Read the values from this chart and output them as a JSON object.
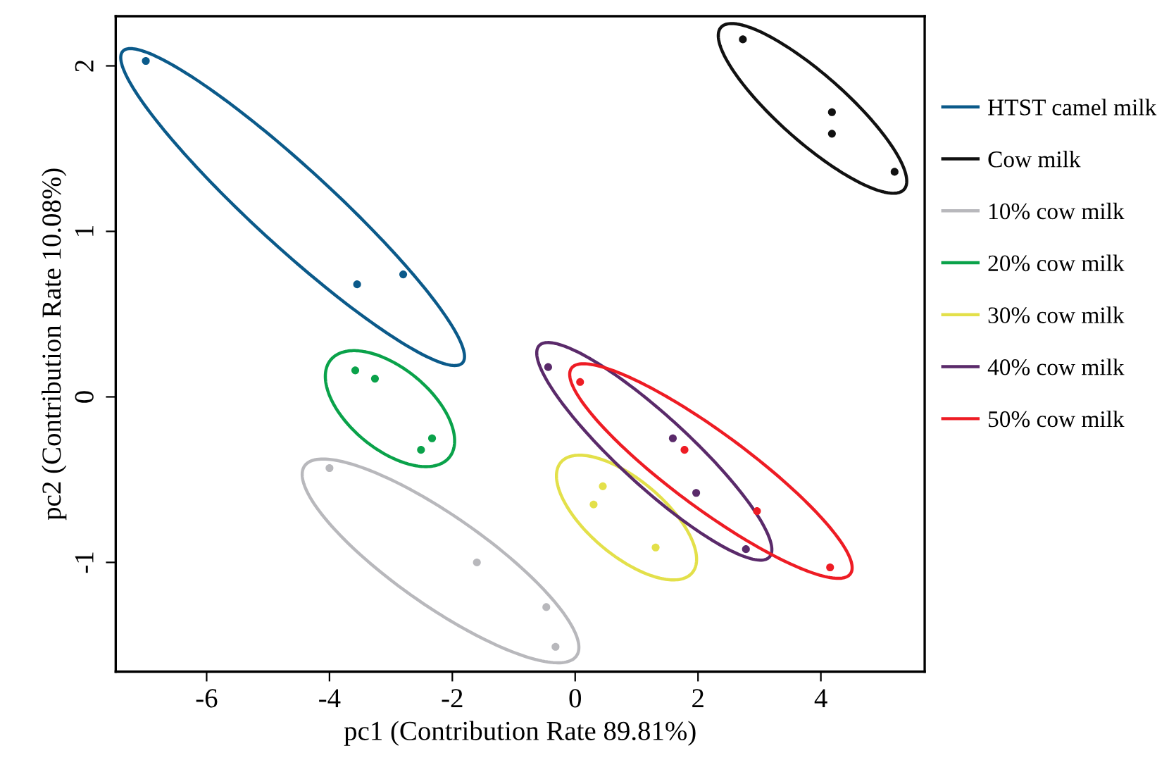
{
  "chart_data": {
    "type": "scatter",
    "xlabel": "pc1 (Contribution Rate 89.81%)",
    "ylabel": "pc2 (Contribution Rate 10.08%)",
    "xlim": [
      -7.48,
      5.69
    ],
    "ylim": [
      -1.66,
      2.3
    ],
    "xticks": [
      -6,
      -4,
      -2,
      0,
      2,
      4
    ],
    "yticks": [
      -1,
      0,
      1,
      2
    ],
    "grid": false,
    "legend": "right",
    "marker": "circle",
    "series": [
      {
        "name": "HTST camel milk",
        "color": "#0b5a8a",
        "x": [
          -6.99,
          -3.55,
          -2.8
        ],
        "values": [
          2.03,
          0.68,
          0.74
        ]
      },
      {
        "name": "Cow milk",
        "color": "#111111",
        "x": [
          2.73,
          4.18,
          4.18,
          5.2
        ],
        "values": [
          2.16,
          1.72,
          1.59,
          1.36
        ]
      },
      {
        "name": "10% cow milk",
        "color": "#b8b8bc",
        "x": [
          -4.0,
          -1.6,
          -0.47,
          -0.32
        ],
        "values": [
          -0.43,
          -1.0,
          -1.27,
          -1.51
        ]
      },
      {
        "name": "20% cow milk",
        "color": "#0aa24a",
        "x": [
          -3.58,
          -3.26,
          -2.33,
          -2.51
        ],
        "values": [
          0.16,
          0.11,
          -0.25,
          -0.32
        ]
      },
      {
        "name": "30% cow milk",
        "color": "#e3e04a",
        "x": [
          0.45,
          0.3,
          1.31
        ],
        "values": [
          -0.54,
          -0.65,
          -0.91
        ]
      },
      {
        "name": "40% cow milk",
        "color": "#5a2a6a",
        "x": [
          -0.44,
          1.59,
          1.97,
          2.78
        ],
        "values": [
          0.18,
          -0.25,
          -0.58,
          -0.92
        ]
      },
      {
        "name": "50% cow milk",
        "color": "#ee1c24",
        "x": [
          0.08,
          1.78,
          2.96,
          4.15
        ],
        "values": [
          0.09,
          -0.32,
          -0.69,
          -1.03
        ]
      }
    ]
  }
}
